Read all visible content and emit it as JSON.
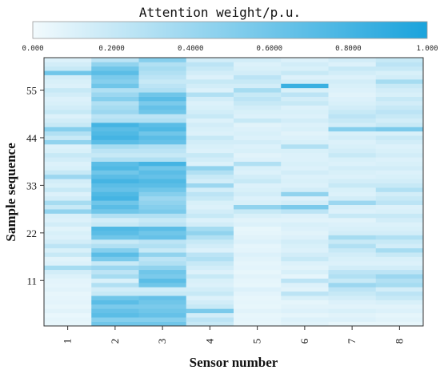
{
  "chart_data": {
    "type": "heatmap",
    "colorbar": {
      "title": "Attention weight/p.u.",
      "ticks": [
        "0.000",
        "0.2000",
        "0.4000",
        "0.6000",
        "0.8000",
        "1.000"
      ],
      "range": [
        0,
        1
      ],
      "color_low": "#f2fafd",
      "color_high": "#1aa3dc",
      "placement": "top"
    },
    "xlabel": "Sensor number",
    "ylabel": "Sample sequence",
    "x_categories": [
      "1",
      "2",
      "3",
      "4",
      "5",
      "6",
      "7",
      "8"
    ],
    "y_ticks": [
      11,
      22,
      33,
      44,
      55
    ],
    "y_range": [
      0.5,
      62.5
    ],
    "rows": 62,
    "values_by_sensor": {
      "1": [
        0.05,
        0.06,
        0.04,
        0.08,
        0.05,
        0.07,
        0.06,
        0.05,
        0.08,
        0.06,
        0.07,
        0.1,
        0.15,
        0.35,
        0.1,
        0.08,
        0.2,
        0.12,
        0.25,
        0.15,
        0.1,
        0.12,
        0.08,
        0.15,
        0.1,
        0.12,
        0.45,
        0.2,
        0.35,
        0.15,
        0.1,
        0.2,
        0.12,
        0.15,
        0.4,
        0.2,
        0.12,
        0.1,
        0.15,
        0.2,
        0.12,
        0.1,
        0.45,
        0.2,
        0.3,
        0.5,
        0.2,
        0.15,
        0.1,
        0.2,
        0.15,
        0.12,
        0.1,
        0.15,
        0.2,
        0.1,
        0.12,
        0.15,
        0.6,
        0.2,
        0.15,
        0.1
      ],
      "2": [
        0.6,
        0.5,
        0.7,
        0.65,
        0.55,
        0.7,
        0.6,
        0.2,
        0.15,
        0.3,
        0.12,
        0.35,
        0.25,
        0.4,
        0.2,
        0.55,
        0.7,
        0.5,
        0.3,
        0.2,
        0.6,
        0.7,
        0.75,
        0.2,
        0.15,
        0.3,
        0.6,
        0.7,
        0.6,
        0.8,
        0.75,
        0.65,
        0.7,
        0.8,
        0.7,
        0.6,
        0.75,
        0.7,
        0.3,
        0.2,
        0.25,
        0.35,
        0.7,
        0.8,
        0.75,
        0.7,
        0.8,
        0.3,
        0.25,
        0.4,
        0.35,
        0.3,
        0.5,
        0.4,
        0.3,
        0.6,
        0.5,
        0.55,
        0.7,
        0.6,
        0.45,
        0.25
      ],
      "3": [
        0.6,
        0.5,
        0.65,
        0.6,
        0.55,
        0.6,
        0.65,
        0.2,
        0.15,
        0.6,
        0.7,
        0.55,
        0.6,
        0.45,
        0.3,
        0.25,
        0.45,
        0.2,
        0.3,
        0.25,
        0.65,
        0.6,
        0.7,
        0.25,
        0.2,
        0.3,
        0.55,
        0.5,
        0.45,
        0.4,
        0.5,
        0.6,
        0.7,
        0.75,
        0.65,
        0.7,
        0.6,
        0.8,
        0.3,
        0.2,
        0.25,
        0.3,
        0.65,
        0.7,
        0.6,
        0.75,
        0.7,
        0.3,
        0.25,
        0.6,
        0.65,
        0.55,
        0.7,
        0.6,
        0.3,
        0.25,
        0.2,
        0.25,
        0.3,
        0.35,
        0.3,
        0.5
      ],
      "4": [
        0.2,
        0.25,
        0.15,
        0.55,
        0.2,
        0.15,
        0.1,
        0.2,
        0.15,
        0.1,
        0.12,
        0.2,
        0.1,
        0.15,
        0.2,
        0.3,
        0.25,
        0.1,
        0.15,
        0.2,
        0.3,
        0.45,
        0.35,
        0.15,
        0.1,
        0.2,
        0.15,
        0.1,
        0.12,
        0.2,
        0.25,
        0.15,
        0.4,
        0.15,
        0.2,
        0.3,
        0.45,
        0.1,
        0.15,
        0.2,
        0.1,
        0.12,
        0.15,
        0.2,
        0.1,
        0.12,
        0.15,
        0.1,
        0.2,
        0.15,
        0.12,
        0.1,
        0.15,
        0.3,
        0.1,
        0.15,
        0.2,
        0.1,
        0.15,
        0.2,
        0.25,
        0.15
      ],
      "5": [
        0.05,
        0.06,
        0.05,
        0.08,
        0.05,
        0.06,
        0.05,
        0.07,
        0.1,
        0.05,
        0.06,
        0.08,
        0.05,
        0.07,
        0.06,
        0.08,
        0.1,
        0.07,
        0.06,
        0.1,
        0.08,
        0.06,
        0.05,
        0.1,
        0.08,
        0.12,
        0.2,
        0.45,
        0.12,
        0.1,
        0.15,
        0.12,
        0.1,
        0.2,
        0.15,
        0.1,
        0.12,
        0.3,
        0.1,
        0.08,
        0.12,
        0.1,
        0.15,
        0.1,
        0.12,
        0.1,
        0.08,
        0.2,
        0.1,
        0.12,
        0.15,
        0.2,
        0.25,
        0.2,
        0.35,
        0.15,
        0.2,
        0.25,
        0.15,
        0.12,
        0.1,
        0.15
      ],
      "6": [
        0.08,
        0.1,
        0.06,
        0.1,
        0.08,
        0.06,
        0.12,
        0.25,
        0.08,
        0.1,
        0.25,
        0.06,
        0.12,
        0.08,
        0.1,
        0.2,
        0.15,
        0.1,
        0.12,
        0.15,
        0.1,
        0.08,
        0.1,
        0.12,
        0.08,
        0.1,
        0.25,
        0.55,
        0.15,
        0.1,
        0.45,
        0.15,
        0.1,
        0.12,
        0.1,
        0.15,
        0.1,
        0.12,
        0.1,
        0.1,
        0.12,
        0.3,
        0.12,
        0.1,
        0.08,
        0.12,
        0.1,
        0.15,
        0.1,
        0.12,
        0.1,
        0.2,
        0.15,
        0.25,
        0.12,
        0.85,
        0.15,
        0.1,
        0.2,
        0.12,
        0.15,
        0.1
      ],
      "7": [
        0.05,
        0.1,
        0.08,
        0.12,
        0.08,
        0.1,
        0.15,
        0.2,
        0.25,
        0.4,
        0.2,
        0.3,
        0.25,
        0.15,
        0.1,
        0.12,
        0.15,
        0.2,
        0.3,
        0.2,
        0.35,
        0.15,
        0.12,
        0.1,
        0.08,
        0.2,
        0.1,
        0.12,
        0.4,
        0.15,
        0.1,
        0.12,
        0.2,
        0.15,
        0.1,
        0.12,
        0.15,
        0.1,
        0.12,
        0.2,
        0.15,
        0.12,
        0.1,
        0.15,
        0.12,
        0.5,
        0.15,
        0.2,
        0.25,
        0.2,
        0.15,
        0.12,
        0.1,
        0.08,
        0.1,
        0.12,
        0.15,
        0.1,
        0.15,
        0.2,
        0.1,
        0.15
      ],
      "8": [
        0.05,
        0.08,
        0.06,
        0.1,
        0.08,
        0.12,
        0.2,
        0.25,
        0.15,
        0.35,
        0.3,
        0.4,
        0.25,
        0.15,
        0.1,
        0.12,
        0.2,
        0.35,
        0.15,
        0.2,
        0.3,
        0.15,
        0.12,
        0.1,
        0.15,
        0.2,
        0.12,
        0.1,
        0.25,
        0.2,
        0.15,
        0.3,
        0.2,
        0.15,
        0.12,
        0.1,
        0.15,
        0.12,
        0.1,
        0.15,
        0.12,
        0.1,
        0.15,
        0.2,
        0.12,
        0.55,
        0.2,
        0.15,
        0.2,
        0.25,
        0.2,
        0.15,
        0.2,
        0.12,
        0.15,
        0.2,
        0.35,
        0.15,
        0.12,
        0.2,
        0.25,
        0.2
      ]
    }
  }
}
